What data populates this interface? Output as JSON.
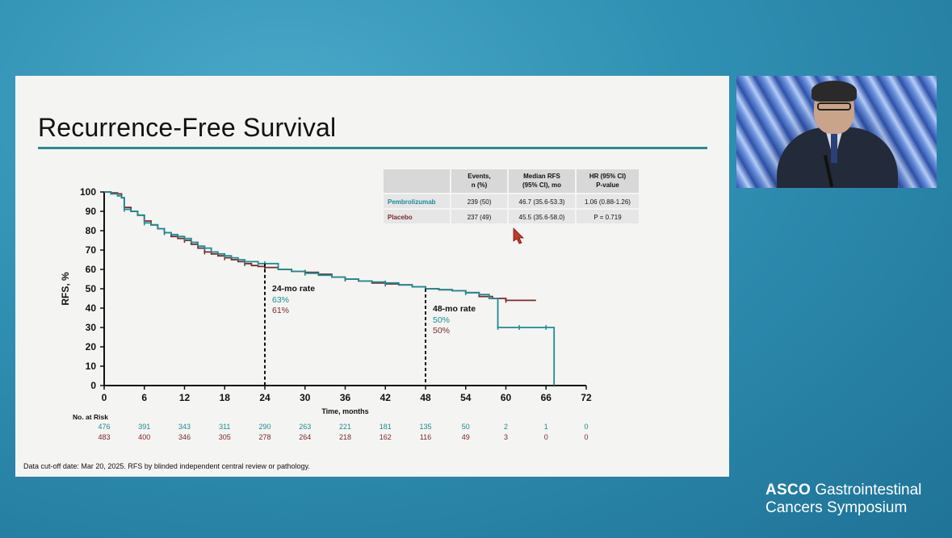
{
  "slide": {
    "title": "Recurrence-Free Survival",
    "footnote": "Data cut-off date: Mar 20, 2025. RFS by blinded independent central review or pathology."
  },
  "logo": {
    "brand": "ASCO",
    "line1": "Gastrointestinal",
    "line2": "Cancers Symposium"
  },
  "colors": {
    "pembrolizumab": "#1e8b93",
    "placebo": "#7a2a2a",
    "accent": "#2a8a94"
  },
  "summary_table": {
    "headers": [
      "Events,\nn (%)",
      "Median RFS\n(95% CI), mo",
      "HR (95% CI)\nP-value"
    ],
    "rows": [
      {
        "arm": "Pembrolizumab",
        "events": "239 (50)",
        "median": "46.7 (35.6-53.3)",
        "hr": "1.06 (0.88-1.26)"
      },
      {
        "arm": "Placebo",
        "events": "237 (49)",
        "median": "45.5 (35.6-58.0)",
        "hr": "P = 0.719"
      }
    ]
  },
  "chart_data": {
    "type": "line",
    "xlabel": "Time, months",
    "ylabel": "RFS, %",
    "xlim": [
      0,
      72
    ],
    "ylim": [
      0,
      100
    ],
    "xticks": [
      0,
      6,
      12,
      18,
      24,
      30,
      36,
      42,
      48,
      54,
      60,
      66,
      72
    ],
    "yticks": [
      0,
      10,
      20,
      30,
      40,
      50,
      60,
      70,
      80,
      90,
      100
    ],
    "series": [
      {
        "name": "Pembrolizumab",
        "color": "#1e8b93",
        "x": [
          0,
          1,
          2,
          2.6,
          3,
          4,
          5,
          6,
          7,
          8,
          9,
          10,
          11,
          12,
          13,
          14,
          15,
          16,
          17,
          18,
          19,
          20,
          21,
          22,
          23,
          24,
          26,
          28,
          30,
          32,
          34,
          36,
          38,
          40,
          42,
          44,
          46,
          48,
          50,
          52,
          54,
          56,
          57.5,
          58.8,
          60,
          61,
          62,
          63,
          64,
          66,
          67.2
        ],
        "y": [
          100,
          99,
          98,
          97,
          91,
          90,
          88,
          84,
          83,
          81,
          79,
          78,
          77,
          76,
          74,
          72,
          71,
          69,
          68,
          67,
          66,
          65,
          64,
          64,
          63,
          63,
          60,
          59,
          58,
          57,
          56,
          55,
          54,
          53.5,
          53,
          52,
          51,
          50,
          49.5,
          49,
          48,
          47,
          45,
          30,
          30,
          30,
          30,
          30,
          30,
          30,
          0
        ]
      },
      {
        "name": "Placebo",
        "color": "#7a2a2a",
        "x": [
          0,
          1,
          2,
          2.6,
          3,
          4,
          5,
          6,
          7,
          8,
          9,
          10,
          11,
          12,
          13,
          14,
          15,
          16,
          17,
          18,
          19,
          20,
          21,
          22,
          23,
          24,
          26,
          28,
          30,
          32,
          34,
          36,
          38,
          40,
          42,
          44,
          46,
          48,
          50,
          52,
          54,
          56,
          58,
          60,
          62,
          64.5
        ],
        "y": [
          100,
          99.5,
          99,
          97,
          92,
          90,
          88,
          85,
          83,
          81,
          79,
          77,
          76,
          75,
          73,
          71,
          69,
          68,
          67,
          66,
          65,
          64,
          63,
          62,
          61.5,
          61,
          60,
          59,
          58.5,
          57.5,
          56,
          55,
          54,
          53,
          52.5,
          52,
          51,
          50,
          49.5,
          49,
          48,
          46,
          45,
          44,
          44,
          44
        ]
      }
    ],
    "annotations": [
      {
        "x": 24,
        "label": "24-mo rate",
        "pembro": "63%",
        "placebo": "61%"
      },
      {
        "x": 48,
        "label": "48-mo rate",
        "pembro": "50%",
        "placebo": "50%"
      }
    ],
    "at_risk": {
      "title": "No. at Risk",
      "times": [
        0,
        6,
        12,
        18,
        24,
        30,
        36,
        42,
        48,
        54,
        60,
        66,
        72
      ],
      "pembrolizumab": [
        "476",
        "391",
        "343",
        "311",
        "290",
        "263",
        "221",
        "181",
        "135",
        "50",
        "2",
        "1",
        "0"
      ],
      "placebo": [
        "483",
        "400",
        "346",
        "305",
        "278",
        "264",
        "218",
        "162",
        "116",
        "49",
        "3",
        "0",
        "0"
      ]
    }
  }
}
